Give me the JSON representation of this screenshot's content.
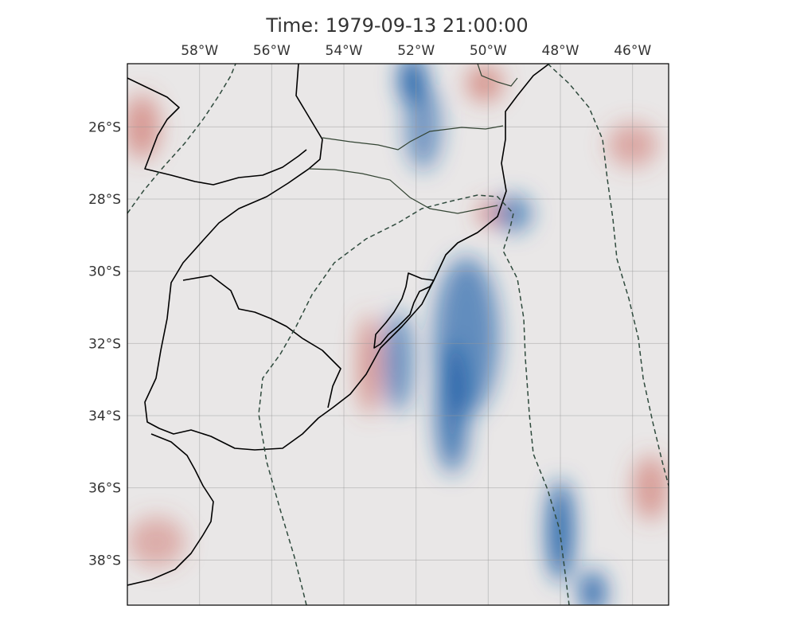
{
  "title": "Time: 1979-09-13 21:00:00",
  "map": {
    "projection": "PlateCarree",
    "lon_range": [
      -60,
      -45
    ],
    "lat_range": [
      -39.25,
      -24.25
    ],
    "gridlines": true,
    "lon_ticks": [
      {
        "value": -58,
        "label": "58°W"
      },
      {
        "value": -56,
        "label": "56°W"
      },
      {
        "value": -54,
        "label": "54°W"
      },
      {
        "value": -52,
        "label": "52°W"
      },
      {
        "value": -50,
        "label": "50°W"
      },
      {
        "value": -48,
        "label": "48°W"
      },
      {
        "value": -46,
        "label": "46°W"
      }
    ],
    "lat_ticks": [
      {
        "value": -26,
        "label": "26°S"
      },
      {
        "value": -28,
        "label": "28°S"
      },
      {
        "value": -30,
        "label": "30°S"
      },
      {
        "value": -32,
        "label": "32°S"
      },
      {
        "value": -34,
        "label": "34°S"
      },
      {
        "value": -36,
        "label": "36°S"
      },
      {
        "value": -38,
        "label": "38°S"
      }
    ],
    "colormap": {
      "negative": "#1f5fa8",
      "neutral": "#e9e7e7",
      "positive": "#c9554a"
    }
  },
  "field_features": [
    {
      "name": "negative-core-north",
      "lon": -52.1,
      "lat": -24.7,
      "rx": 0.35,
      "ry": 0.7,
      "value": -1.0
    },
    {
      "name": "negative-band-north",
      "lon": -51.8,
      "lat": -26.0,
      "rx": 0.5,
      "ry": 1.2,
      "value": -0.45
    },
    {
      "name": "negative-band-center",
      "lon": -50.6,
      "lat": -31.8,
      "rx": 0.9,
      "ry": 2.2,
      "value": -0.55
    },
    {
      "name": "negative-band-south",
      "lon": -51.0,
      "lat": -33.8,
      "rx": 0.45,
      "ry": 1.8,
      "value": -0.75
    },
    {
      "name": "negative-band-west",
      "lon": -52.5,
      "lat": -32.5,
      "rx": 0.4,
      "ry": 1.4,
      "value": -0.55
    },
    {
      "name": "negative-core-south",
      "lon": -48.0,
      "lat": -37.2,
      "rx": 0.35,
      "ry": 1.4,
      "value": -0.95
    },
    {
      "name": "negative-core-bottom",
      "lon": -47.1,
      "lat": -38.9,
      "rx": 0.35,
      "ry": 0.6,
      "value": -0.9
    },
    {
      "name": "negative-patch-east",
      "lon": -49.3,
      "lat": -28.4,
      "rx": 0.5,
      "ry": 0.5,
      "value": -0.6
    },
    {
      "name": "positive-core-coast",
      "lon": -50.0,
      "lat": -28.4,
      "rx": 0.25,
      "ry": 0.3,
      "value": 0.75
    },
    {
      "name": "positive-patch-north",
      "lon": -50.1,
      "lat": -24.8,
      "rx": 0.5,
      "ry": 0.5,
      "value": 0.45
    },
    {
      "name": "positive-patch-nw",
      "lon": -59.6,
      "lat": -26.0,
      "rx": 0.5,
      "ry": 0.9,
      "value": 0.4
    },
    {
      "name": "positive-strip-west",
      "lon": -53.3,
      "lat": -32.6,
      "rx": 0.3,
      "ry": 1.4,
      "value": 0.45
    },
    {
      "name": "positive-patch-southeast",
      "lon": -45.5,
      "lat": -36.0,
      "rx": 0.5,
      "ry": 0.9,
      "value": 0.35
    },
    {
      "name": "positive-patch-east",
      "lon": -46.0,
      "lat": -26.5,
      "rx": 0.7,
      "ry": 0.6,
      "value": 0.25
    },
    {
      "name": "positive-patch-southwest",
      "lon": -59.2,
      "lat": -37.5,
      "rx": 0.8,
      "ry": 0.7,
      "value": 0.2
    }
  ]
}
